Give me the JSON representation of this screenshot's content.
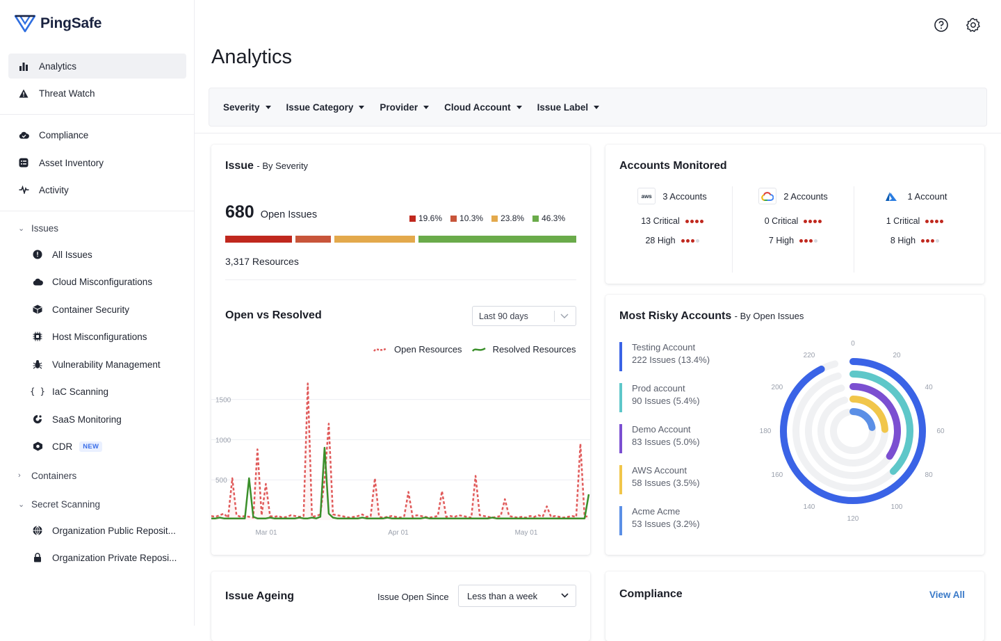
{
  "app": {
    "name": "PingSafe"
  },
  "sidebar": {
    "primary": [
      {
        "label": "Analytics",
        "icon": "bar-chart-icon"
      },
      {
        "label": "Threat Watch",
        "icon": "warning-icon"
      }
    ],
    "secondary": [
      {
        "label": "Compliance",
        "icon": "cloud-check-icon"
      },
      {
        "label": "Asset Inventory",
        "icon": "inventory-icon"
      },
      {
        "label": "Activity",
        "icon": "activity-icon"
      }
    ],
    "issues_group": "Issues",
    "issues": [
      {
        "label": "All Issues",
        "icon": "alert-circle-icon"
      },
      {
        "label": "Cloud Misconfigurations",
        "icon": "cloud-icon"
      },
      {
        "label": "Container Security",
        "icon": "container-icon"
      },
      {
        "label": "Host Misconfigurations",
        "icon": "host-icon"
      },
      {
        "label": "Vulnerability Management",
        "icon": "bug-icon"
      },
      {
        "label": "IaC Scanning",
        "icon": "code-icon"
      },
      {
        "label": "SaaS Monitoring",
        "icon": "saas-icon"
      },
      {
        "label": "CDR",
        "icon": "cdr-icon",
        "badge": "NEW"
      }
    ],
    "containers_group": "Containers",
    "secret_group": "Secret Scanning",
    "secret": [
      {
        "label": "Organization Public Reposit...",
        "icon": "globe-icon"
      },
      {
        "label": "Organization Private Reposi...",
        "icon": "lock-icon"
      }
    ]
  },
  "header": {
    "title": "Analytics"
  },
  "filters": [
    "Severity",
    "Issue Category",
    "Provider",
    "Cloud Account",
    "Issue Label"
  ],
  "issue_card": {
    "title": "Issue",
    "subtitle": "- By Severity",
    "count": "680",
    "count_label": "Open Issues",
    "resources": "3,317 Resources",
    "severity": [
      {
        "pct": "19.6%",
        "value": 19.6,
        "color": "#c0281e"
      },
      {
        "pct": "10.3%",
        "value": 10.3,
        "color": "#c8553a"
      },
      {
        "pct": "23.8%",
        "value": 23.8,
        "color": "#e3a94c"
      },
      {
        "pct": "46.3%",
        "value": 46.3,
        "color": "#6aab4a"
      }
    ],
    "ovr_title": "Open vs Resolved",
    "range": "Last 90 days"
  },
  "chart_data": [
    {
      "type": "line",
      "title": "Open vs Resolved",
      "ylim": [
        0,
        1800
      ],
      "yticks": [
        "1500",
        "1000",
        "500"
      ],
      "xticks": [
        "Mar 01",
        "Apr 01",
        "May 01"
      ],
      "series": [
        {
          "name": "Open Resources",
          "color": "#e05a5a",
          "values": [
            50,
            40,
            60,
            80,
            30,
            520,
            60,
            40,
            50,
            40,
            30,
            880,
            60,
            450,
            50,
            40,
            50,
            30,
            40,
            60,
            50,
            40,
            50,
            1700,
            40,
            50,
            70,
            500,
            1200,
            70,
            60,
            50,
            40,
            30,
            40,
            50,
            70,
            40,
            50,
            520,
            40,
            30,
            40,
            50,
            40,
            30,
            50,
            350,
            40,
            60,
            50,
            40,
            30,
            40,
            50,
            360,
            40,
            50,
            40,
            60,
            50,
            40,
            30,
            550,
            60,
            50,
            40,
            30,
            40,
            50,
            260,
            50,
            40,
            30,
            40,
            30,
            50,
            40,
            60,
            40,
            170,
            40,
            50,
            40,
            30,
            40,
            50,
            40,
            950,
            40,
            50
          ]
        },
        {
          "name": "Resolved Resources",
          "color": "#3a8f2a",
          "values": [
            20,
            20,
            30,
            20,
            20,
            20,
            20,
            20,
            20,
            520,
            40,
            20,
            20,
            20,
            30,
            20,
            20,
            20,
            20,
            20,
            20,
            30,
            20,
            20,
            30,
            20,
            40,
            900,
            80,
            30,
            20,
            20,
            20,
            20,
            20,
            20,
            30,
            20,
            20,
            20,
            20,
            20,
            30,
            20,
            20,
            20,
            20,
            20,
            20,
            20,
            20,
            30,
            20,
            20,
            20,
            20,
            20,
            20,
            20,
            20,
            20,
            20,
            20,
            20,
            20,
            20,
            20,
            30,
            20,
            20,
            20,
            20,
            20,
            20,
            20,
            20,
            20,
            20,
            20,
            20,
            20,
            20,
            20,
            20,
            20,
            20,
            20,
            20,
            20,
            20,
            320
          ]
        }
      ]
    },
    {
      "type": "radial-bar",
      "title": "Most Risky Accounts",
      "categories": [
        "Testing Account",
        "Prod account",
        "Demo Account",
        "AWS Account",
        "Acme Acme"
      ],
      "values": [
        222,
        90,
        83,
        58,
        53
      ],
      "max": 240,
      "ticks": [
        "0",
        "20",
        "40",
        "60",
        "80",
        "100",
        "120",
        "140",
        "160",
        "180",
        "200",
        "220"
      ]
    }
  ],
  "accounts_card": {
    "title": "Accounts Monitored",
    "providers": [
      {
        "name": "aws",
        "accounts": "3 Accounts",
        "critical": "13 Critical",
        "high": "28 High",
        "high_dots": 3
      },
      {
        "name": "gcp",
        "accounts": "2 Accounts",
        "critical": "0 Critical",
        "high": "7 High",
        "high_dots": 3
      },
      {
        "name": "azure",
        "accounts": "1 Account",
        "critical": "1 Critical",
        "high": "8 High",
        "high_dots": 3
      }
    ]
  },
  "risky_card": {
    "title": "Most Risky Accounts",
    "subtitle": "- By Open Issues",
    "accounts": [
      {
        "name": "Testing Account",
        "issues": "222 Issues",
        "pct": "(13.4%)",
        "color": "#3a63e6"
      },
      {
        "name": "Prod account",
        "issues": "90 Issues",
        "pct": "(5.4%)",
        "color": "#5ec7c9"
      },
      {
        "name": "Demo Account",
        "issues": "83 Issues",
        "pct": "(5.0%)",
        "color": "#7b4fd1"
      },
      {
        "name": "AWS Account",
        "issues": "58 Issues",
        "pct": "(3.5%)",
        "color": "#f1c64a"
      },
      {
        "name": "Acme Acme",
        "issues": "53 Issues",
        "pct": "(3.2%)",
        "color": "#5b8fe6"
      }
    ]
  },
  "ageing_card": {
    "title": "Issue Ageing",
    "since_label": "Issue Open Since",
    "since_value": "Less than a week"
  },
  "compliance_card": {
    "title": "Compliance",
    "view_all": "View All"
  },
  "colors": {
    "critical": "#c0281e",
    "muted": "#d6d9e0",
    "accent": "#3a6ee8"
  }
}
